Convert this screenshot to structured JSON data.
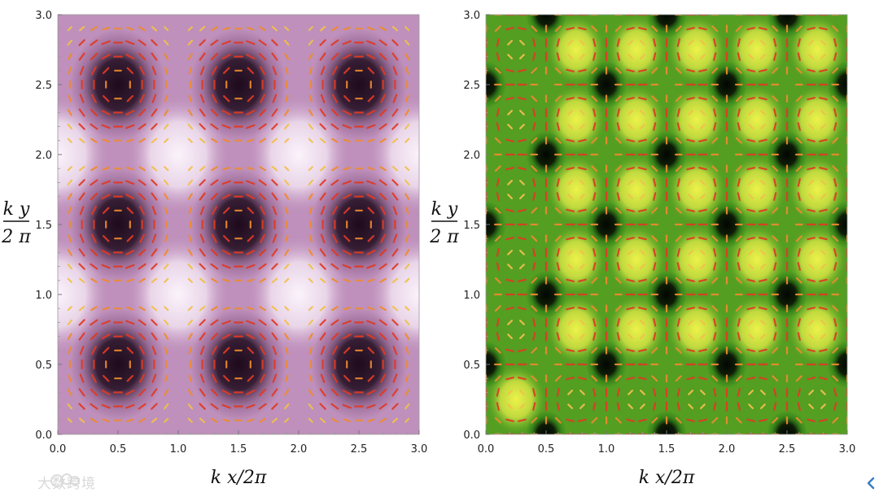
{
  "watermark": {
    "text": "大数跨境",
    "color": "#d8d8d8"
  },
  "nav": {
    "icon": "arrow-left-icon",
    "color": "#3a7fc4"
  },
  "chart_data": [
    {
      "type": "heatmap",
      "title": "",
      "xlabel": "k x/2π",
      "ylabel_numerator": "k y",
      "ylabel_denominator": "2 π",
      "xlim": [
        0,
        3
      ],
      "ylim": [
        0,
        3
      ],
      "x_ticks": [
        "0.0",
        "0.5",
        "1.0",
        "1.5",
        "2.0",
        "2.5",
        "3.0"
      ],
      "y_ticks": [
        "0.0",
        "0.5",
        "1.0",
        "1.5",
        "2.0",
        "2.5",
        "3.0"
      ],
      "colormap": [
        "#1e0a1c",
        "#7d4f7a",
        "#c89ac6",
        "#fbf3fb"
      ],
      "dark_minima": [
        [
          0.5,
          0.5
        ],
        [
          1.5,
          0.5
        ],
        [
          2.5,
          0.5
        ],
        [
          0.5,
          1.5
        ],
        [
          1.5,
          1.5
        ],
        [
          2.5,
          1.5
        ],
        [
          0.5,
          2.5
        ],
        [
          1.5,
          2.5
        ],
        [
          2.5,
          2.5
        ]
      ],
      "bright_maxima": [
        [
          1.0,
          1.0
        ],
        [
          2.0,
          1.0
        ],
        [
          1.0,
          2.0
        ],
        [
          2.0,
          2.0
        ],
        [
          0.0,
          1.0
        ],
        [
          0.0,
          2.0
        ],
        [
          3.0,
          1.0
        ],
        [
          3.0,
          2.0
        ]
      ],
      "vector_field": "circulating arrows around each dark center",
      "arrow_colors": [
        "#e03a24",
        "#ef8a2e",
        "#f2c04c",
        "#9bcf6a"
      ]
    },
    {
      "type": "heatmap",
      "title": "",
      "xlabel": "k x/2π",
      "ylabel_numerator": "k y",
      "ylabel_denominator": "2 π",
      "xlim": [
        0,
        3
      ],
      "ylim": [
        0,
        3
      ],
      "x_ticks": [
        "0.0",
        "0.5",
        "1.0",
        "1.5",
        "2.0",
        "2.5",
        "3.0"
      ],
      "y_ticks": [
        "0.0",
        "0.5",
        "1.0",
        "1.5",
        "2.0",
        "2.5",
        "3.0"
      ],
      "colormap": [
        "#020602",
        "#1b6d12",
        "#73b82a",
        "#eef24a"
      ],
      "dark_minima": [
        [
          0.5,
          0.0
        ],
        [
          1.5,
          0.0
        ],
        [
          2.5,
          0.0
        ],
        [
          0.5,
          1.0
        ],
        [
          1.5,
          1.0
        ],
        [
          2.5,
          1.0
        ],
        [
          0.5,
          2.0
        ],
        [
          1.5,
          2.0
        ],
        [
          2.5,
          2.0
        ],
        [
          0.5,
          3.0
        ],
        [
          1.5,
          3.0
        ],
        [
          2.5,
          3.0
        ],
        [
          0.0,
          0.5
        ],
        [
          1.0,
          0.5
        ],
        [
          2.0,
          0.5
        ],
        [
          3.0,
          0.5
        ],
        [
          0.0,
          1.5
        ],
        [
          1.0,
          1.5
        ],
        [
          2.0,
          1.5
        ],
        [
          3.0,
          1.5
        ],
        [
          0.0,
          2.5
        ],
        [
          1.0,
          2.5
        ],
        [
          2.0,
          2.5
        ],
        [
          3.0,
          2.5
        ]
      ],
      "bright_maxima": [
        [
          0.75,
          0.75
        ],
        [
          1.25,
          0.75
        ],
        [
          1.75,
          0.75
        ],
        [
          2.25,
          0.75
        ],
        [
          2.75,
          0.75
        ],
        [
          0.25,
          0.25
        ],
        [
          0.75,
          1.25
        ],
        [
          1.25,
          1.25
        ],
        [
          1.75,
          1.25
        ],
        [
          2.25,
          1.25
        ],
        [
          2.75,
          1.25
        ],
        [
          0.75,
          1.75
        ],
        [
          1.25,
          1.75
        ],
        [
          1.75,
          1.75
        ],
        [
          2.25,
          1.75
        ],
        [
          2.75,
          1.75
        ],
        [
          0.75,
          2.25
        ],
        [
          1.25,
          2.25
        ],
        [
          1.75,
          2.25
        ],
        [
          2.25,
          2.25
        ],
        [
          2.75,
          2.25
        ],
        [
          0.75,
          2.75
        ],
        [
          1.25,
          2.75
        ],
        [
          1.75,
          2.75
        ],
        [
          2.25,
          2.75
        ],
        [
          2.75,
          2.75
        ]
      ],
      "vector_field": "short arrows along square lattice edges",
      "arrow_colors": [
        "#e03a24",
        "#ef8a2e",
        "#f2c04c",
        "#9bcf6a"
      ]
    }
  ]
}
